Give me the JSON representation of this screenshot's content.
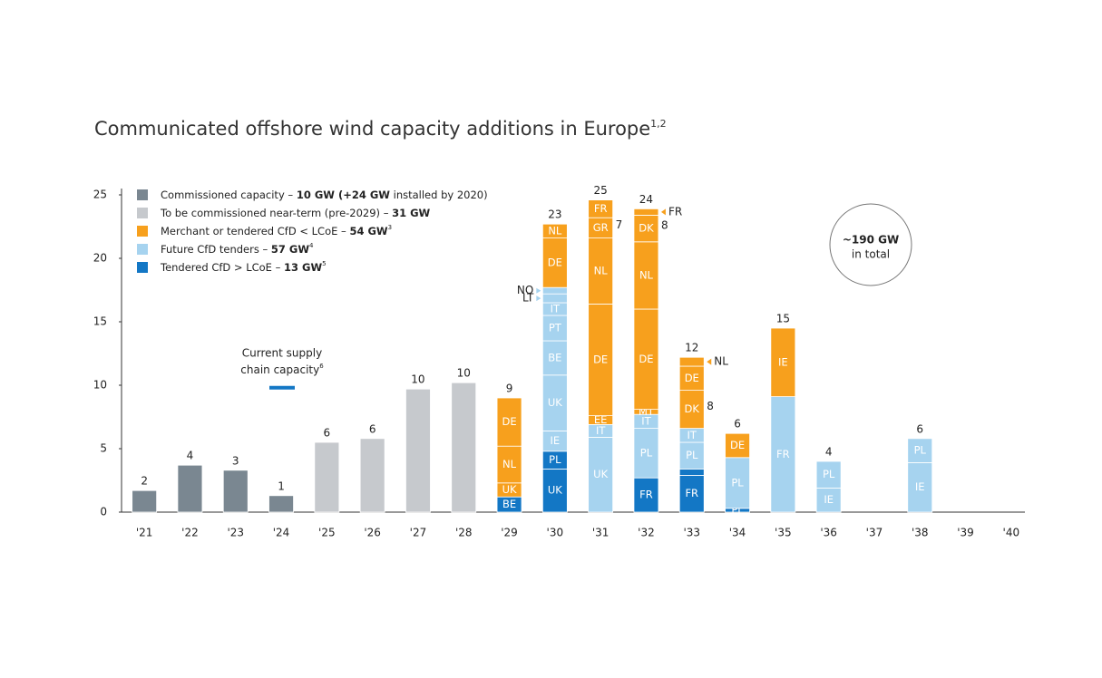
{
  "chart_data": {
    "type": "stacked-bar",
    "title": "Communicated offshore wind capacity additions in Europe",
    "title_sup": "1,2",
    "categories": [
      "'21",
      "'22",
      "'23",
      "'24",
      "'25",
      "'26",
      "'27",
      "'28",
      "'29",
      "'30",
      "'31",
      "'32",
      "'33",
      "'34",
      "'35",
      "'36",
      "'37",
      "'38",
      "'39",
      "'40"
    ],
    "ylim": [
      0,
      25
    ],
    "yticks": [
      0,
      5,
      10,
      15,
      20,
      25
    ],
    "series": [
      {
        "color": "#7a8791",
        "name": [
          {
            "t": "Commissioned capacity – "
          },
          {
            "t": "10 GW (+24 GW",
            "b": true
          },
          {
            "t": " installed by 2020)"
          }
        ]
      },
      {
        "color": "#c6c9cd",
        "name": [
          {
            "t": "To be commissioned near-term (pre-2029) – "
          },
          {
            "t": "31 GW",
            "b": true
          }
        ]
      },
      {
        "color": "#f7a01d",
        "name": [
          {
            "t": "Merchant or tendered CfD < LCoE – "
          },
          {
            "t": "54 GW",
            "b": true
          },
          {
            "t": "3",
            "sup": true
          }
        ]
      },
      {
        "color": "#a6d3ef",
        "name": [
          {
            "t": "Future CfD tenders – "
          },
          {
            "t": "57 GW",
            "b": true
          },
          {
            "t": "4",
            "sup": true
          }
        ]
      },
      {
        "color": "#1377c5",
        "name": [
          {
            "t": "Tendered CfD > LCoE – "
          },
          {
            "t": "13 GW",
            "b": true
          },
          {
            "t": "5",
            "sup": true
          }
        ]
      }
    ],
    "totals": [
      2,
      4,
      3,
      1,
      6,
      6,
      10,
      10,
      9,
      23,
      25,
      24,
      12,
      6,
      15,
      4,
      null,
      6,
      null,
      null
    ],
    "stacks": [
      [
        {
          "series": 0,
          "value": 1.7
        }
      ],
      [
        {
          "series": 0,
          "value": 3.7
        }
      ],
      [
        {
          "series": 0,
          "value": 3.3
        }
      ],
      [
        {
          "series": 0,
          "value": 1.3
        }
      ],
      [
        {
          "series": 1,
          "value": 5.5
        }
      ],
      [
        {
          "series": 1,
          "value": 5.8
        }
      ],
      [
        {
          "series": 1,
          "value": 9.7
        }
      ],
      [
        {
          "series": 1,
          "value": 10.2
        }
      ],
      [
        {
          "series": 4,
          "value": 1.2,
          "label": "BE"
        },
        {
          "series": 2,
          "value": 1.1,
          "label": "UK"
        },
        {
          "series": 2,
          "value": 2.9,
          "label": "NL"
        },
        {
          "series": 2,
          "value": 3.8,
          "label": "DE"
        }
      ],
      [
        {
          "series": 4,
          "value": 3.4,
          "label": "UK"
        },
        {
          "series": 4,
          "value": 1.4,
          "label": "PL"
        },
        {
          "series": 3,
          "value": 1.6,
          "label": "IE"
        },
        {
          "series": 3,
          "value": 4.4,
          "label": "UK"
        },
        {
          "series": 3,
          "value": 2.7,
          "label": "BE"
        },
        {
          "series": 3,
          "value": 2.0,
          "label": "PT"
        },
        {
          "series": 3,
          "value": 1.0,
          "label": "IT"
        },
        {
          "series": 3,
          "value": 0.7,
          "label": "LT",
          "side": "left"
        },
        {
          "series": 3,
          "value": 0.5,
          "label": "NO",
          "side": "left"
        },
        {
          "series": 2,
          "value": 3.9,
          "label": "DE"
        },
        {
          "series": 2,
          "value": 1.1,
          "label": "NL"
        }
      ],
      [
        {
          "series": 3,
          "value": 5.9,
          "label": "UK"
        },
        {
          "series": 3,
          "value": 1.0,
          "label": "IT"
        },
        {
          "series": 2,
          "value": 0.7,
          "label": "EE"
        },
        {
          "series": 2,
          "value": 8.8,
          "label": "DE"
        },
        {
          "series": 2,
          "value": 5.2,
          "label": "NL"
        },
        {
          "series": 2,
          "value": 1.6,
          "label": "GR",
          "note": "7"
        },
        {
          "series": 2,
          "value": 1.4,
          "label": "FR"
        }
      ],
      [
        {
          "series": 4,
          "value": 2.7,
          "label": "FR"
        },
        {
          "series": 3,
          "value": 3.9,
          "label": "PL"
        },
        {
          "series": 3,
          "value": 1.1,
          "label": "IT"
        },
        {
          "series": 2,
          "value": 0.4,
          "label": "MT"
        },
        {
          "series": 2,
          "value": 7.9,
          "label": "DE"
        },
        {
          "series": 2,
          "value": 5.3,
          "label": "NL"
        },
        {
          "series": 2,
          "value": 2.1,
          "label": "DK",
          "note": "8"
        },
        {
          "series": 2,
          "value": 0.5,
          "label": "FR",
          "side": "right"
        }
      ],
      [
        {
          "series": 4,
          "value": 2.9,
          "label": "FR"
        },
        {
          "series": 4,
          "value": 0.5
        },
        {
          "series": 3,
          "value": 2.1,
          "label": "PL"
        },
        {
          "series": 3,
          "value": 1.1,
          "label": "IT"
        },
        {
          "series": 2,
          "value": 3.0,
          "label": "DK",
          "note": "8"
        },
        {
          "series": 2,
          "value": 1.9,
          "label": "DE"
        },
        {
          "series": 2,
          "value": 0.7,
          "label": "NL",
          "side": "right"
        }
      ],
      [
        {
          "series": 4,
          "value": 0.3,
          "label": "PL"
        },
        {
          "series": 3,
          "value": 4.0,
          "label": "PL"
        },
        {
          "series": 2,
          "value": 1.9,
          "label": "DE"
        }
      ],
      [
        {
          "series": 3,
          "value": 9.1,
          "label": "FR"
        },
        {
          "series": 2,
          "value": 5.4,
          "label": "IE"
        }
      ],
      [
        {
          "series": 3,
          "value": 1.9,
          "label": "IE"
        },
        {
          "series": 3,
          "value": 2.1,
          "label": "PL"
        }
      ],
      [],
      [
        {
          "series": 3,
          "value": 3.9,
          "label": "IE"
        },
        {
          "series": 3,
          "value": 1.9,
          "label": "PL"
        }
      ],
      [],
      []
    ],
    "supply_chain": {
      "lines": [
        "Current supply",
        "chain capacity"
      ],
      "sup": "6",
      "value": 9.8
    },
    "total_badge": {
      "headline": "~190 GW",
      "text": "in total"
    }
  }
}
